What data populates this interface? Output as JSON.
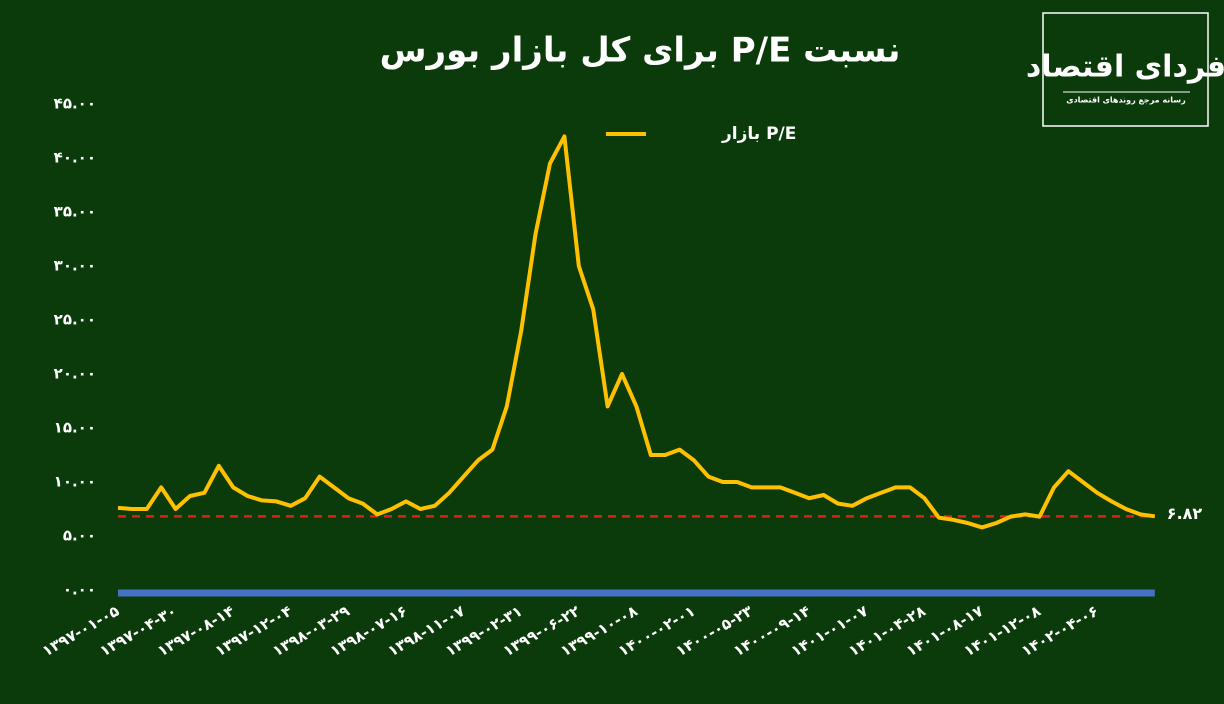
{
  "chart_data": {
    "type": "line",
    "title": "نسبت P/E برای کل بازار بورس",
    "logo": {
      "name": "فردای اقتصاد",
      "tagline": "رسانه مرجع روندهای اقتصادی"
    },
    "categories": [
      "۱۳۹۷-۰۱-۰۵",
      null,
      null,
      null,
      "۱۳۹۷-۰۴-۳۰",
      null,
      null,
      null,
      "۱۳۹۷-۰۸-۱۴",
      null,
      null,
      null,
      "۱۳۹۷-۱۲-۰۴",
      null,
      null,
      null,
      "۱۳۹۸-۰۳-۲۹",
      null,
      null,
      null,
      "۱۳۹۸-۰۷-۱۶",
      null,
      null,
      null,
      "۱۳۹۸-۱۱-۰۷",
      null,
      null,
      null,
      "۱۳۹۹-۰۲-۳۱",
      null,
      null,
      null,
      "۱۳۹۹-۰۶-۲۲",
      null,
      null,
      null,
      "۱۳۹۹-۱۰-۰۸",
      null,
      null,
      null,
      "۱۴۰۰-۰۲-۰۱",
      null,
      null,
      null,
      "۱۴۰۰-۰۵-۲۳",
      null,
      null,
      null,
      "۱۴۰۰-۰۹-۱۴",
      null,
      null,
      null,
      "۱۴۰۱-۰۱-۰۷",
      null,
      null,
      null,
      "۱۴۰۱-۰۴-۲۸",
      null,
      null,
      null,
      "۱۴۰۱-۰۸-۱۷",
      null,
      null,
      null,
      "۱۴۰۱-۱۲-۰۸",
      null,
      null,
      null,
      "۱۴۰۲-۰۴-۰۶",
      null,
      null,
      null,
      null
    ],
    "series": [
      {
        "name": "P/E بازار",
        "color": "#ffc000",
        "values": [
          7.6,
          7.5,
          7.5,
          9.5,
          7.5,
          8.7,
          9.0,
          11.5,
          9.5,
          8.7,
          8.3,
          8.2,
          7.8,
          8.5,
          10.5,
          9.5,
          8.5,
          8.0,
          7.0,
          7.5,
          8.2,
          7.5,
          7.8,
          9.0,
          10.5,
          12.0,
          13.0,
          17.0,
          24.0,
          33.0,
          39.5,
          42.0,
          30.0,
          26.0,
          17.0,
          20.0,
          17.0,
          12.5,
          12.5,
          13.0,
          12.0,
          10.5,
          10.0,
          10.0,
          9.5,
          9.5,
          9.5,
          9.0,
          8.5,
          8.8,
          8.0,
          7.8,
          8.5,
          9.0,
          9.5,
          9.5,
          8.5,
          6.7,
          6.5,
          6.2,
          5.8,
          6.2,
          6.8,
          7.0,
          6.8,
          9.5,
          11.0,
          10.0,
          9.0,
          8.2,
          7.5,
          7.0,
          6.82
        ]
      }
    ],
    "reference": {
      "value": 6.82,
      "label": "۶.۸۲",
      "color": "#e0201a"
    },
    "ylim": [
      0,
      45
    ],
    "yticks": [
      {
        "value": 0,
        "label": "۰.۰۰"
      },
      {
        "value": 5,
        "label": "۵.۰۰"
      },
      {
        "value": 10,
        "label": "۱۰.۰۰"
      },
      {
        "value": 15,
        "label": "۱۵.۰۰"
      },
      {
        "value": 20,
        "label": "۲۰.۰۰"
      },
      {
        "value": 25,
        "label": "۲۵.۰۰"
      },
      {
        "value": 30,
        "label": "۳۰.۰۰"
      },
      {
        "value": 35,
        "label": "۳۵.۰۰"
      },
      {
        "value": 40,
        "label": "۴۰.۰۰"
      },
      {
        "value": 45,
        "label": "۴۵.۰۰"
      }
    ],
    "grid": false
  }
}
